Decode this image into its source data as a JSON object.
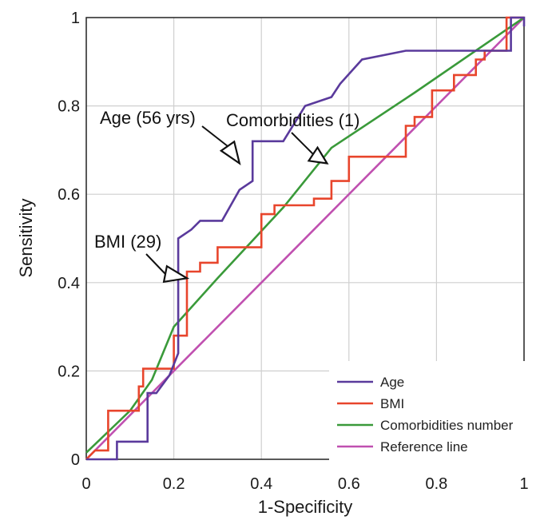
{
  "chart_data": {
    "type": "line",
    "title": "",
    "xlabel": "1-Specificity",
    "ylabel": "Sensitivity",
    "xlim": [
      0,
      1
    ],
    "ylim": [
      0,
      1
    ],
    "xticks": [
      "0",
      "0.2",
      "0.4",
      "0.6",
      "0.8",
      "1"
    ],
    "yticks": [
      "0",
      "0.2",
      "0.4",
      "0.6",
      "0.8",
      "1"
    ],
    "grid": true,
    "legend_position": "bottom-right",
    "series": [
      {
        "name": "Age",
        "color": "#5a3a9c",
        "step": true,
        "points": [
          [
            0,
            0
          ],
          [
            0.07,
            0
          ],
          [
            0.07,
            0.04
          ],
          [
            0.14,
            0.04
          ],
          [
            0.14,
            0.15
          ],
          [
            0.16,
            0.15
          ],
          [
            0.19,
            0.19
          ],
          [
            0.21,
            0.24
          ],
          [
            0.21,
            0.5
          ],
          [
            0.24,
            0.52
          ],
          [
            0.26,
            0.54
          ],
          [
            0.31,
            0.54
          ],
          [
            0.35,
            0.61
          ],
          [
            0.38,
            0.63
          ],
          [
            0.38,
            0.72
          ],
          [
            0.45,
            0.72
          ],
          [
            0.5,
            0.8
          ],
          [
            0.56,
            0.82
          ],
          [
            0.58,
            0.85
          ],
          [
            0.63,
            0.905
          ],
          [
            0.73,
            0.925
          ],
          [
            0.97,
            0.925
          ],
          [
            0.97,
            1
          ],
          [
            1,
            1
          ],
          [
            1,
            0.98
          ]
        ]
      },
      {
        "name": "BMI",
        "color": "#e8452c",
        "step": true,
        "points": [
          [
            0,
            0
          ],
          [
            0.02,
            0.02
          ],
          [
            0.05,
            0.02
          ],
          [
            0.05,
            0.11
          ],
          [
            0.12,
            0.11
          ],
          [
            0.12,
            0.165
          ],
          [
            0.13,
            0.165
          ],
          [
            0.13,
            0.205
          ],
          [
            0.2,
            0.205
          ],
          [
            0.2,
            0.28
          ],
          [
            0.23,
            0.28
          ],
          [
            0.23,
            0.425
          ],
          [
            0.26,
            0.425
          ],
          [
            0.26,
            0.445
          ],
          [
            0.3,
            0.445
          ],
          [
            0.3,
            0.48
          ],
          [
            0.4,
            0.48
          ],
          [
            0.4,
            0.555
          ],
          [
            0.43,
            0.555
          ],
          [
            0.43,
            0.575
          ],
          [
            0.52,
            0.575
          ],
          [
            0.52,
            0.59
          ],
          [
            0.56,
            0.59
          ],
          [
            0.56,
            0.63
          ],
          [
            0.6,
            0.63
          ],
          [
            0.6,
            0.685
          ],
          [
            0.73,
            0.685
          ],
          [
            0.73,
            0.755
          ],
          [
            0.75,
            0.755
          ],
          [
            0.75,
            0.775
          ],
          [
            0.79,
            0.775
          ],
          [
            0.79,
            0.835
          ],
          [
            0.84,
            0.835
          ],
          [
            0.84,
            0.87
          ],
          [
            0.89,
            0.87
          ],
          [
            0.89,
            0.905
          ],
          [
            0.91,
            0.905
          ],
          [
            0.91,
            0.925
          ],
          [
            0.96,
            0.925
          ],
          [
            0.96,
            1
          ],
          [
            1,
            1
          ]
        ]
      },
      {
        "name": "Comorbidities number",
        "color": "#3a9a3a",
        "step": false,
        "points": [
          [
            0,
            0.015
          ],
          [
            0.1,
            0.11
          ],
          [
            0.15,
            0.18
          ],
          [
            0.2,
            0.3
          ],
          [
            0.3,
            0.41
          ],
          [
            0.45,
            0.57
          ],
          [
            0.56,
            0.705
          ],
          [
            0.75,
            0.83
          ],
          [
            1,
            1
          ]
        ]
      },
      {
        "name": "Reference line",
        "color": "#c050b0",
        "step": false,
        "points": [
          [
            0,
            0
          ],
          [
            1,
            1
          ]
        ]
      }
    ],
    "annotations": [
      {
        "text": "Age (56 yrs)",
        "point": [
          0.35,
          0.67
        ]
      },
      {
        "text": "Comorbidities (1)",
        "point": [
          0.55,
          0.67
        ]
      },
      {
        "text": "BMI (29)",
        "point": [
          0.23,
          0.41
        ]
      }
    ]
  }
}
